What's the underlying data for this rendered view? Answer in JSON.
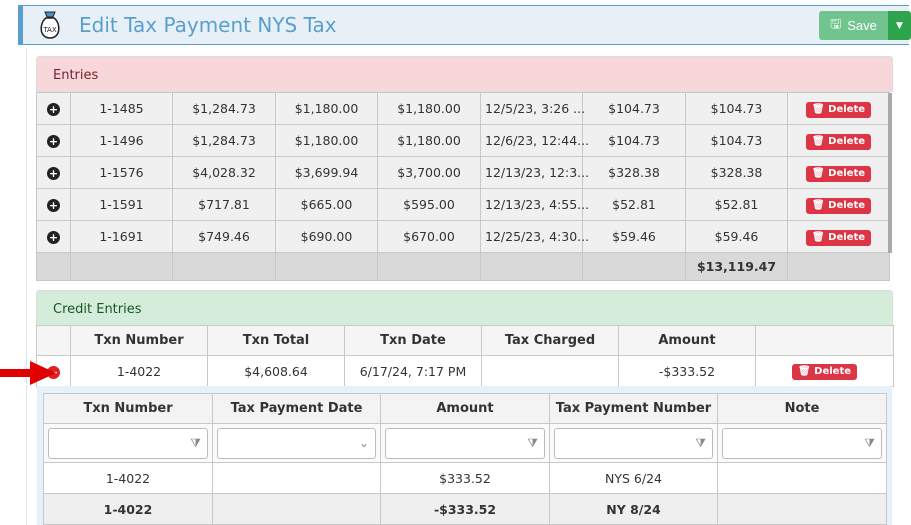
{
  "header": {
    "title": "Edit Tax Payment NYS Tax",
    "icon": "tax-bag-icon",
    "save_label": "Save"
  },
  "entries": {
    "title": "Entries",
    "rows": [
      [
        "1-1485",
        "$1,284.73",
        "$1,180.00",
        "$1,180.00",
        "12/5/23, 3:26 ...",
        "$104.73",
        "$104.73"
      ],
      [
        "1-1496",
        "$1,284.73",
        "$1,180.00",
        "$1,180.00",
        "12/6/23, 12:44...",
        "$104.73",
        "$104.73"
      ],
      [
        "1-1576",
        "$4,028.32",
        "$3,699.94",
        "$3,700.00",
        "12/13/23, 12:3...",
        "$328.38",
        "$328.38"
      ],
      [
        "1-1591",
        "$717.81",
        "$665.00",
        "$595.00",
        "12/13/23, 4:55...",
        "$52.81",
        "$52.81"
      ],
      [
        "1-1691",
        "$749.46",
        "$690.00",
        "$670.00",
        "12/25/23, 4:30...",
        "$59.46",
        "$59.46"
      ]
    ],
    "total": "$13,119.47",
    "delete_label": "Delete"
  },
  "credit": {
    "title": "Credit Entries",
    "columns": [
      "Txn Number",
      "Txn Total",
      "Txn Date",
      "Tax Charged",
      "Amount"
    ],
    "row": [
      "1-4022",
      "$4,608.64",
      "6/17/24, 7:17 PM",
      "",
      "-$333.52"
    ],
    "delete_label": "Delete",
    "detail": {
      "columns": [
        "Txn Number",
        "Tax Payment Date",
        "Amount",
        "Tax Payment Number",
        "Note"
      ],
      "row": [
        "1-4022",
        "",
        "$333.52",
        "NYS 6/24",
        ""
      ],
      "footer": [
        "1-4022",
        "",
        "-$333.52",
        "NY 8/24",
        ""
      ]
    }
  },
  "colors": {
    "accent": "#5a9fcc",
    "save": "#72c48f",
    "danger": "#dc3545",
    "arrow": "#e00000"
  }
}
